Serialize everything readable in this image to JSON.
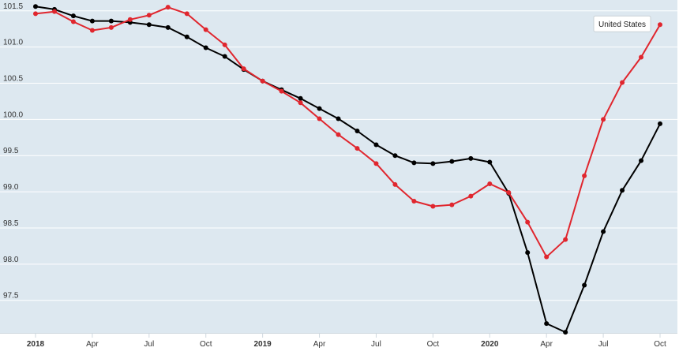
{
  "colors": {
    "plot_bg": "#dde8f0",
    "grid": "#ffffff",
    "series_black": "#000000",
    "series_red": "#e0262e",
    "axis": "#cfd8df"
  },
  "chart_data": {
    "type": "line",
    "title": "",
    "xlabel": "",
    "ylabel": "",
    "ylim": [
      97.05,
      101.65
    ],
    "yticks": [
      97.5,
      98.0,
      98.5,
      99.0,
      99.5,
      100.0,
      100.5,
      101.0,
      101.5
    ],
    "ytick_labels": [
      "97.5",
      "98.0",
      "98.5",
      "99.0",
      "99.5",
      "100.0",
      "100.5",
      "101.0",
      "101.5"
    ],
    "x": [
      "2018-01",
      "2018-02",
      "2018-03",
      "2018-04",
      "2018-05",
      "2018-06",
      "2018-07",
      "2018-08",
      "2018-09",
      "2018-10",
      "2018-11",
      "2018-12",
      "2019-01",
      "2019-02",
      "2019-03",
      "2019-04",
      "2019-05",
      "2019-06",
      "2019-07",
      "2019-08",
      "2019-09",
      "2019-10",
      "2019-11",
      "2019-12",
      "2020-01",
      "2020-02",
      "2020-03",
      "2020-04",
      "2020-05",
      "2020-06",
      "2020-07",
      "2020-08",
      "2020-09",
      "2020-10"
    ],
    "xticks": [
      {
        "month": "2018-01",
        "label": "2018",
        "bold": true
      },
      {
        "month": "2018-04",
        "label": "Apr",
        "bold": false
      },
      {
        "month": "2018-07",
        "label": "Jul",
        "bold": false
      },
      {
        "month": "2018-10",
        "label": "Oct",
        "bold": false
      },
      {
        "month": "2019-01",
        "label": "2019",
        "bold": true
      },
      {
        "month": "2019-04",
        "label": "Apr",
        "bold": false
      },
      {
        "month": "2019-07",
        "label": "Jul",
        "bold": false
      },
      {
        "month": "2019-10",
        "label": "Oct",
        "bold": false
      },
      {
        "month": "2020-01",
        "label": "2020",
        "bold": true
      },
      {
        "month": "2020-04",
        "label": "Apr",
        "bold": false
      },
      {
        "month": "2020-07",
        "label": "Jul",
        "bold": false
      },
      {
        "month": "2020-10",
        "label": "Oct",
        "bold": false
      }
    ],
    "grid": true,
    "legend": "none",
    "series": [
      {
        "color": "#000000",
        "values": [
          101.56,
          101.52,
          101.43,
          101.36,
          101.36,
          101.34,
          101.31,
          101.27,
          101.14,
          100.99,
          100.87,
          100.69,
          100.53,
          100.41,
          100.29,
          100.15,
          100.01,
          99.84,
          99.65,
          99.5,
          99.4,
          99.39,
          99.42,
          99.46,
          99.41,
          98.98,
          98.16,
          97.18,
          97.06,
          97.71,
          98.45,
          99.02,
          99.43,
          99.94
        ]
      },
      {
        "name": "United States",
        "color": "#e0262e",
        "values": [
          101.46,
          101.49,
          101.35,
          101.23,
          101.27,
          101.38,
          101.44,
          101.55,
          101.46,
          101.24,
          101.03,
          100.7,
          100.53,
          100.39,
          100.23,
          100.01,
          99.79,
          99.6,
          99.39,
          99.1,
          98.87,
          98.8,
          98.82,
          98.94,
          99.11,
          98.99,
          98.58,
          98.1,
          98.34,
          99.22,
          100.0,
          100.51,
          100.86,
          101.31
        ]
      }
    ],
    "tooltip": {
      "text": "United States",
      "series_index": 1
    }
  }
}
